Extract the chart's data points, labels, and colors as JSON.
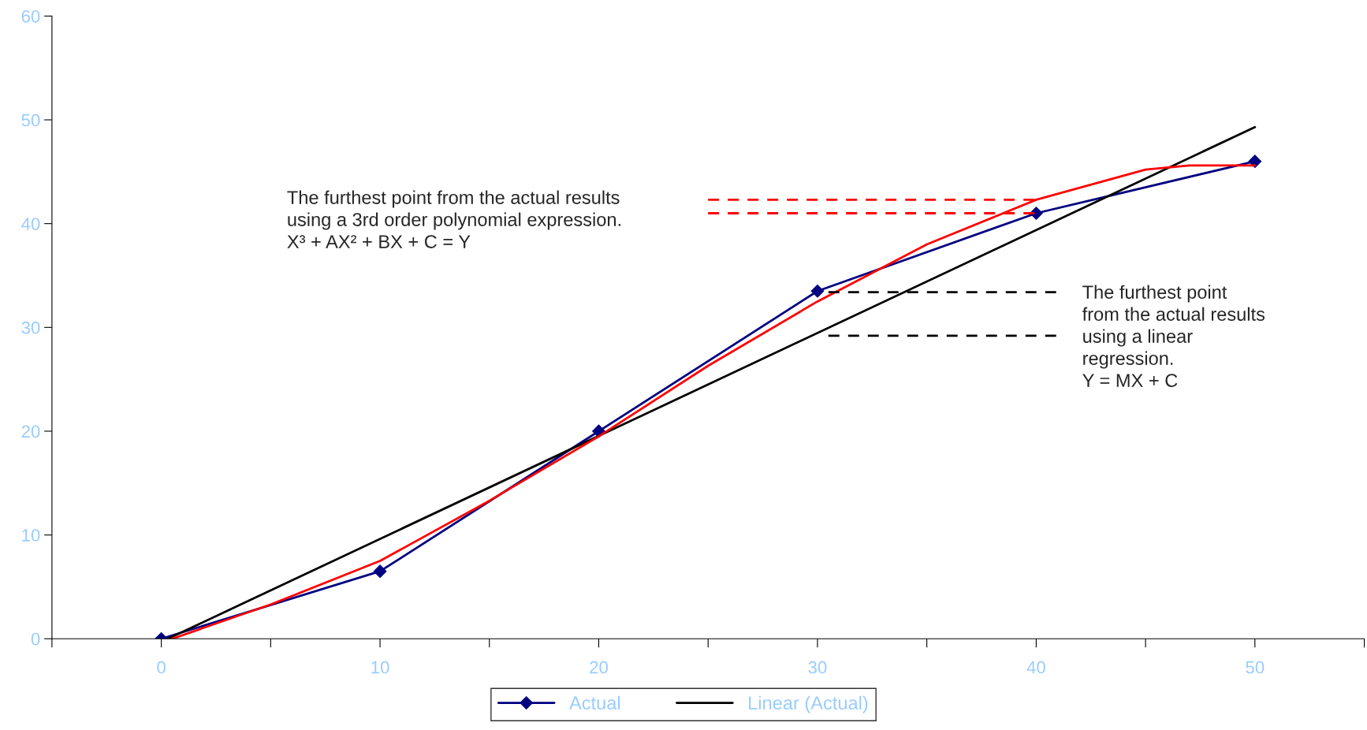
{
  "chart_data": {
    "type": "line",
    "xlim": [
      -5,
      55
    ],
    "xticks": [
      {
        "value": -5,
        "label": null
      },
      0,
      {
        "value": 5,
        "label": null
      },
      10,
      {
        "value": 15,
        "label": null
      },
      20,
      {
        "value": 25,
        "label": null
      },
      30,
      {
        "value": 35,
        "label": null
      },
      40,
      {
        "value": 45,
        "label": null
      },
      50,
      {
        "value": 55,
        "label": null
      }
    ],
    "ylim": [
      0,
      60
    ],
    "yticks": [
      0,
      10,
      20,
      30,
      40,
      50,
      60
    ],
    "grid": false,
    "legend": "bottom",
    "series": [
      {
        "name": "Actual",
        "color": "#000080",
        "marker": "diamond",
        "line_style": "solid",
        "x": [
          0,
          10,
          20,
          30,
          40,
          50
        ],
        "values": [
          0,
          6.5,
          20,
          33.5,
          41,
          46
        ]
      },
      {
        "name": "Linear (Actual)",
        "color": "#000000",
        "marker": "none",
        "line_style": "solid",
        "x": [
          0.3,
          50
        ],
        "values": [
          0,
          49.3
        ]
      },
      {
        "color": "#ff0000",
        "marker": "none",
        "line_style": "solid",
        "x": [
          0.5,
          5,
          10,
          15,
          20,
          25,
          30,
          35,
          40,
          45,
          47,
          50
        ],
        "values": [
          0,
          3.3,
          7.5,
          13.3,
          19.5,
          26.3,
          32.5,
          38.0,
          42.3,
          45.2,
          45.6,
          45.6
        ]
      },
      {
        "color": "#ff0000",
        "marker": "none",
        "line_style": "dashed",
        "x": [
          25,
          40.2
        ],
        "values": [
          42.3,
          42.3
        ]
      },
      {
        "color": "#ff0000",
        "marker": "none",
        "line_style": "dashed",
        "x": [
          25,
          40
        ],
        "values": [
          41,
          41
        ]
      },
      {
        "color": "#000000",
        "marker": "none",
        "line_style": "dashed",
        "x": [
          30.5,
          41
        ],
        "values": [
          33.4,
          33.4
        ]
      },
      {
        "color": "#000000",
        "marker": "none",
        "line_style": "dashed",
        "x": [
          30.5,
          41
        ],
        "values": [
          29.2,
          29.2
        ]
      }
    ],
    "annotations": [
      "The furthest point from the actual results\nusing a 3rd order polynomial expression.\nX³ + AX² + BX + C = Y",
      "The furthest point\nfrom the actual results\nusing a linear\nregression.\nY = MX + C"
    ]
  }
}
